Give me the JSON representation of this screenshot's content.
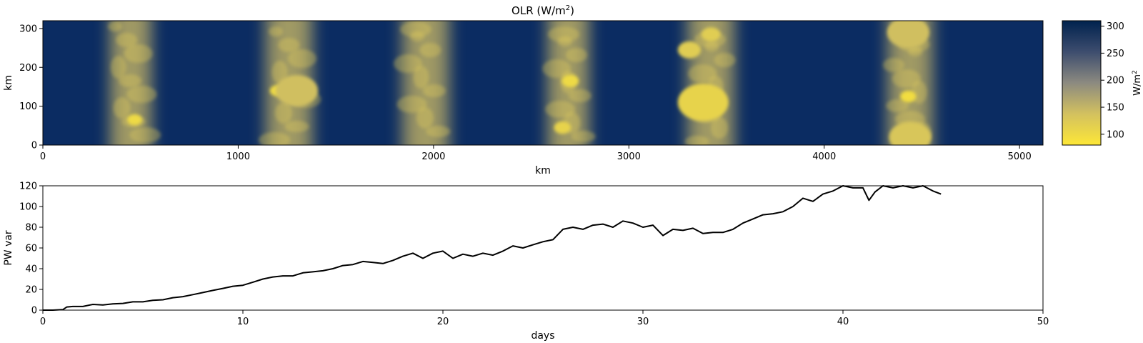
{
  "chart_data": [
    {
      "type": "heatmap",
      "title": "OLR (W/m",
      "title_sup": "2",
      "title_end": ")",
      "xlabel": "km",
      "ylabel": "km",
      "xlim": [
        0,
        5120
      ],
      "ylim": [
        0,
        320
      ],
      "x_ticks": [
        0,
        1000,
        2000,
        3000,
        4000,
        5000
      ],
      "y_ticks": [
        0,
        100,
        200,
        300
      ],
      "colormap": "cividis_r",
      "colors": {
        "low": "#fde737",
        "mid": "#7c7b78",
        "high": "#00224e"
      },
      "colorbar": {
        "label": "W/m",
        "label_sup": "2",
        "range": [
          80,
          310
        ],
        "ticks": [
          100,
          150,
          200,
          250,
          300
        ]
      },
      "convective_bands": [
        {
          "center": 450,
          "width": 230
        },
        {
          "center": 1260,
          "width": 260
        },
        {
          "center": 1960,
          "width": 260
        },
        {
          "center": 2690,
          "width": 230
        },
        {
          "center": 3420,
          "width": 260
        },
        {
          "center": 4440,
          "width": 250
        }
      ],
      "bright_cells": [
        {
          "x": 470,
          "y": 65,
          "r": 14,
          "olr": 100
        },
        {
          "x": 1200,
          "y": 140,
          "r": 14,
          "olr": 100
        },
        {
          "x": 1300,
          "y": 140,
          "r": 40,
          "olr": 140
        },
        {
          "x": 2700,
          "y": 165,
          "r": 16,
          "olr": 100
        },
        {
          "x": 2660,
          "y": 45,
          "r": 16,
          "olr": 110
        },
        {
          "x": 3380,
          "y": 110,
          "r": 48,
          "olr": 110
        },
        {
          "x": 3310,
          "y": 245,
          "r": 22,
          "olr": 120
        },
        {
          "x": 3420,
          "y": 285,
          "r": 18,
          "olr": 120
        },
        {
          "x": 4430,
          "y": 125,
          "r": 15,
          "olr": 95
        },
        {
          "x": 4430,
          "y": 290,
          "r": 40,
          "olr": 140
        },
        {
          "x": 4440,
          "y": 20,
          "r": 40,
          "olr": 130
        }
      ]
    },
    {
      "type": "line",
      "title": "",
      "xlabel": "days",
      "ylabel": "PW var",
      "xlim": [
        0,
        50
      ],
      "ylim": [
        0,
        120
      ],
      "x_ticks": [
        0,
        10,
        20,
        30,
        40,
        50
      ],
      "y_ticks": [
        0,
        20,
        40,
        60,
        80,
        100,
        120
      ],
      "line_color": "#000000",
      "series": [
        {
          "x": [
            0,
            0.5,
            1,
            1.2,
            1.5,
            2,
            2.5,
            3,
            3.5,
            4,
            4.5,
            5,
            5.5,
            6,
            6.5,
            7,
            7.5,
            8,
            8.5,
            9,
            9.5,
            10,
            10.5,
            11,
            11.5,
            12,
            12.5,
            13,
            13.5,
            14,
            14.5,
            15,
            15.5,
            16,
            16.5,
            17,
            17.5,
            18,
            18.5,
            19,
            19.5,
            20,
            20.5,
            21,
            21.5,
            22,
            22.5,
            23,
            23.5,
            24,
            24.5,
            25,
            25.5,
            26,
            26.5,
            27,
            27.5,
            28,
            28.5,
            29,
            29.5,
            30,
            30.5,
            31,
            31.5,
            32,
            32.5,
            33,
            33.5,
            34,
            34.5,
            35,
            35.5,
            36,
            36.5,
            37,
            37.5,
            38,
            38.5,
            39,
            39.5,
            40,
            40.5,
            41,
            41.3,
            41.6,
            42,
            42.5,
            43,
            43.5,
            44,
            44.5,
            44.9
          ],
          "y": [
            0,
            0,
            0.5,
            3,
            3.5,
            3.5,
            5.5,
            5,
            6,
            6.5,
            8,
            8,
            9.5,
            10,
            12,
            13,
            15,
            17,
            19,
            21,
            23,
            24,
            27,
            30,
            32,
            33,
            33,
            36,
            37,
            38,
            40,
            43,
            44,
            47,
            46,
            45,
            48,
            52,
            55,
            50,
            55,
            57,
            50,
            54,
            52,
            55,
            53,
            57,
            62,
            60,
            63,
            66,
            68,
            78,
            80,
            78,
            82,
            83,
            80,
            86,
            84,
            80,
            82,
            72,
            78,
            77,
            79,
            74,
            75,
            75,
            78,
            84,
            88,
            92,
            93,
            95,
            100,
            108,
            105,
            112,
            115,
            120,
            118,
            118,
            106,
            114,
            120,
            118,
            120,
            118,
            120,
            115,
            112
          ]
        }
      ]
    }
  ]
}
